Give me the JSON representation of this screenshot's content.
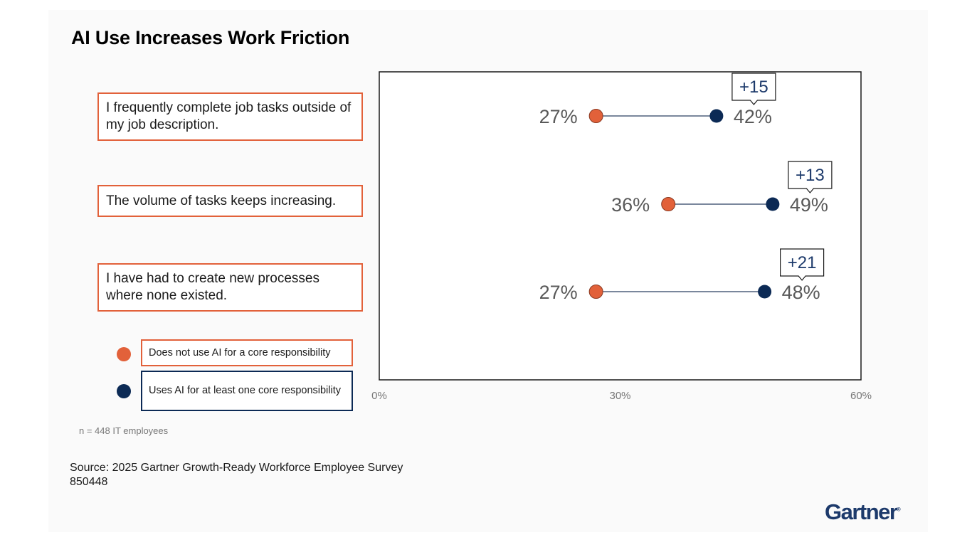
{
  "title": "AI Use Increases Work Friction",
  "chart_data": {
    "type": "dumbbell",
    "x_ticks": [
      "0%",
      "30%",
      "60%"
    ],
    "xlim": [
      0,
      60
    ],
    "categories": [
      "I frequently complete job tasks outside of my job description.",
      "The volume of tasks keeps increasing.",
      "I have had to create new processes where none existed."
    ],
    "series": [
      {
        "name": "Does not use AI for a core responsibility",
        "values": [
          27,
          36,
          27
        ],
        "labels": [
          "27%",
          "36%",
          "27%"
        ],
        "color": "#e2613a"
      },
      {
        "name": "Uses AI for at least one core responsibility",
        "values": [
          42,
          49,
          48
        ],
        "labels": [
          "42%",
          "49%",
          "48%"
        ],
        "color": "#0c2a55"
      }
    ],
    "differences": [
      "+15",
      "+13",
      "+21"
    ]
  },
  "colors": {
    "orange": "#e2613a",
    "navy": "#0c2a55",
    "line": "#7a879c",
    "label": "#595959"
  },
  "note": "n = 448 IT employees",
  "source_line1": "Source: 2025 Gartner Growth-Ready Workforce Employee Survey",
  "source_line2": "850448",
  "logo": "Gartner"
}
